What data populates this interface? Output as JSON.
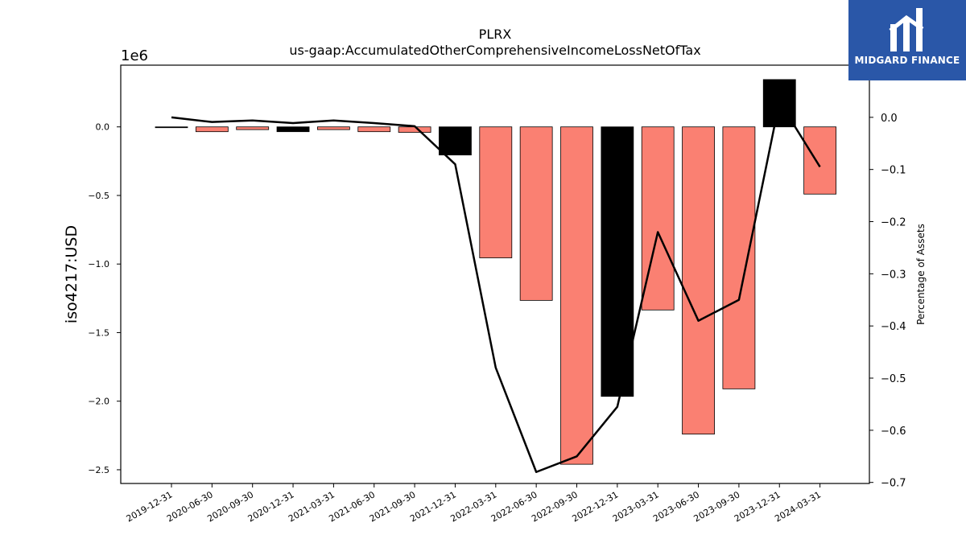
{
  "logo": {
    "text": "MIDGARD FINANCE",
    "background": "#2a57a8",
    "foreground": "#ffffff"
  },
  "chart_data": {
    "type": "bar",
    "title": "PLRX",
    "subtitle": "us-gaap:AccumulatedOtherComprehensiveIncomeLossNetOfTax",
    "ylabel": "iso4217:USD",
    "y_multiplier_label": "1e6",
    "y2label": "Percentage of Assets",
    "categories": [
      "2019-12-31",
      "2020-06-30",
      "2020-09-30",
      "2020-12-31",
      "2021-03-31",
      "2021-06-30",
      "2021-09-30",
      "2021-12-31",
      "2022-03-31",
      "2022-06-30",
      "2022-09-30",
      "2022-12-31",
      "2023-03-31",
      "2023-06-30",
      "2023-09-30",
      "2023-12-31",
      "2024-03-31"
    ],
    "series": [
      {
        "kind": "bar",
        "axis": "left",
        "values": [
          -0.005,
          -0.035,
          -0.02,
          -0.035,
          -0.02,
          -0.035,
          -0.04,
          -0.205,
          -0.955,
          -1.265,
          -2.46,
          -1.965,
          -1.335,
          -2.24,
          -1.91,
          0.345,
          -0.49
        ],
        "colors": [
          "#000000",
          "#fa8072",
          "#fa8072",
          "#000000",
          "#fa8072",
          "#fa8072",
          "#fa8072",
          "#000000",
          "#fa8072",
          "#fa8072",
          "#fa8072",
          "#000000",
          "#fa8072",
          "#fa8072",
          "#fa8072",
          "#000000",
          "#fa8072"
        ]
      },
      {
        "kind": "line",
        "axis": "right",
        "color": "#000000",
        "values": [
          0.0,
          -0.009,
          -0.006,
          -0.011,
          -0.006,
          -0.011,
          -0.017,
          -0.09,
          -0.48,
          -0.68,
          -0.65,
          -0.555,
          -0.22,
          -0.39,
          -0.35,
          0.03,
          -0.095
        ]
      }
    ],
    "ylim": [
      -2.6,
      0.45
    ],
    "yticks": [
      0.0,
      -0.5,
      -1.0,
      -1.5,
      -2.0,
      -2.5
    ],
    "ytick_labels": [
      "0.0",
      "−0.5",
      "−1.0",
      "−1.5",
      "−2.0",
      "−2.5"
    ],
    "y2lim": [
      -0.702,
      0.1
    ],
    "y2ticks": [
      0.0,
      -0.1,
      -0.2,
      -0.3,
      -0.4,
      -0.5,
      -0.6,
      -0.7
    ],
    "y2tick_labels": [
      "0.0",
      "−0.1",
      "−0.2",
      "−0.3",
      "−0.4",
      "−0.5",
      "−0.6",
      "−0.7"
    ],
    "grid": false,
    "bar_color_positive": "#000000",
    "bar_color_negative": "#fa8072"
  }
}
